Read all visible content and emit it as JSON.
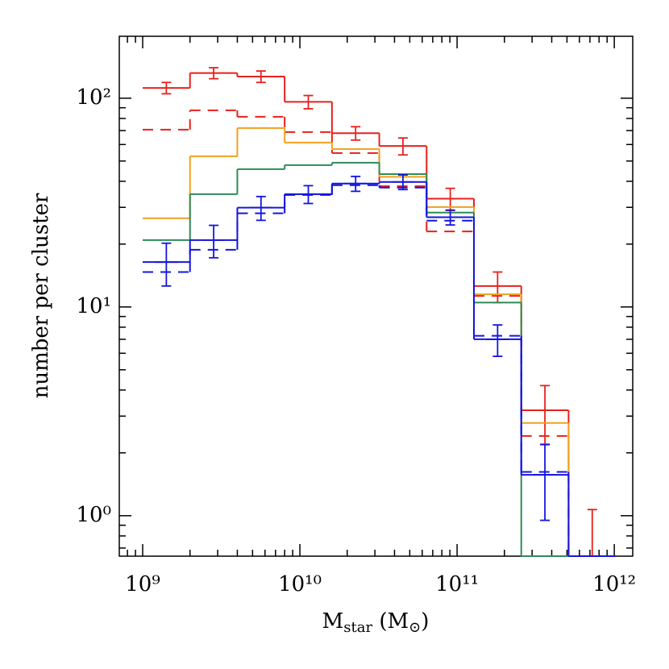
{
  "chart_data": {
    "type": "histogram",
    "xlabel_parts": [
      "M",
      "star",
      " (M",
      "⊙",
      ")"
    ],
    "ylabel": "number per cluster",
    "xscale": "log",
    "yscale": "log",
    "bins": [
      1000000000.0,
      2000000000.0,
      4000000000.0,
      8000000000.0,
      16000000000.0,
      32000000000.0,
      64000000000.0,
      128000000000.0,
      256000000000.0,
      512000000000.0,
      1024000000000.0
    ],
    "series": [
      {
        "color": "#e8201c",
        "dash": false,
        "values": [
          112,
          132,
          127,
          96,
          68,
          59,
          33,
          12.6,
          3.2,
          0
        ],
        "errors": [
          7,
          8,
          8,
          7,
          5,
          5.5,
          4,
          2.1,
          1,
          1.07
        ]
      },
      {
        "color": "#e8201c",
        "dash": true,
        "values": [
          70.7,
          87.5,
          81.5,
          68.8,
          54.6,
          37.9,
          23,
          11.3,
          2.41,
          0
        ]
      },
      {
        "color": "#f0a020",
        "dash": false,
        "values": [
          26.6,
          52.7,
          71.9,
          61.3,
          57.1,
          42,
          30.1,
          11.5,
          2.78,
          0
        ]
      },
      {
        "color": "#2e8b57",
        "dash": false,
        "values": [
          20.9,
          34.7,
          45.7,
          47.8,
          49.1,
          43.3,
          28.3,
          10.5,
          0,
          null
        ]
      },
      {
        "color": "#1414e0",
        "dash": false,
        "values": [
          16.4,
          20.9,
          29.9,
          34.7,
          39,
          39.7,
          26.9,
          7.0,
          1.57,
          0
        ],
        "errors": [
          3.8,
          3.7,
          3.9,
          3.4,
          3.2,
          3.2,
          2.2,
          1.2,
          0.62,
          null
        ]
      },
      {
        "color": "#1414e0",
        "dash": true,
        "values": [
          14.7,
          18.8,
          28.1,
          34.4,
          38.3,
          37.3,
          25.9,
          7.27,
          1.62,
          0
        ]
      }
    ],
    "xlim": [
      710000000.0,
      1310000000000.0
    ],
    "ylim": [
      0.64,
      198
    ],
    "xticks": [
      {
        "value": 1000000000.0,
        "label": "10⁹"
      },
      {
        "value": 10000000000.0,
        "label": "10¹⁰"
      },
      {
        "value": 100000000000.0,
        "label": "10¹¹"
      },
      {
        "value": 1000000000000.0,
        "label": "10¹²"
      }
    ],
    "yticks": [
      {
        "value": 1,
        "label": "10⁰"
      },
      {
        "value": 10,
        "label": "10¹"
      },
      {
        "value": 100,
        "label": "10²"
      }
    ],
    "xticks_minor": [
      800000000.0,
      900000000.0,
      2000000000.0,
      3000000000.0,
      4000000000.0,
      5000000000.0,
      6000000000.0,
      7000000000.0,
      8000000000.0,
      9000000000.0,
      20000000000.0,
      30000000000.0,
      40000000000.0,
      50000000000.0,
      60000000000.0,
      70000000000.0,
      80000000000.0,
      90000000000.0,
      200000000000.0,
      300000000000.0,
      400000000000.0,
      500000000000.0,
      600000000000.0,
      700000000000.0,
      800000000000.0,
      900000000000.0
    ],
    "yticks_minor": [
      0.7,
      0.8,
      0.9,
      2,
      3,
      4,
      5,
      6,
      7,
      8,
      9,
      20,
      30,
      40,
      50,
      60,
      70,
      80,
      90
    ]
  }
}
